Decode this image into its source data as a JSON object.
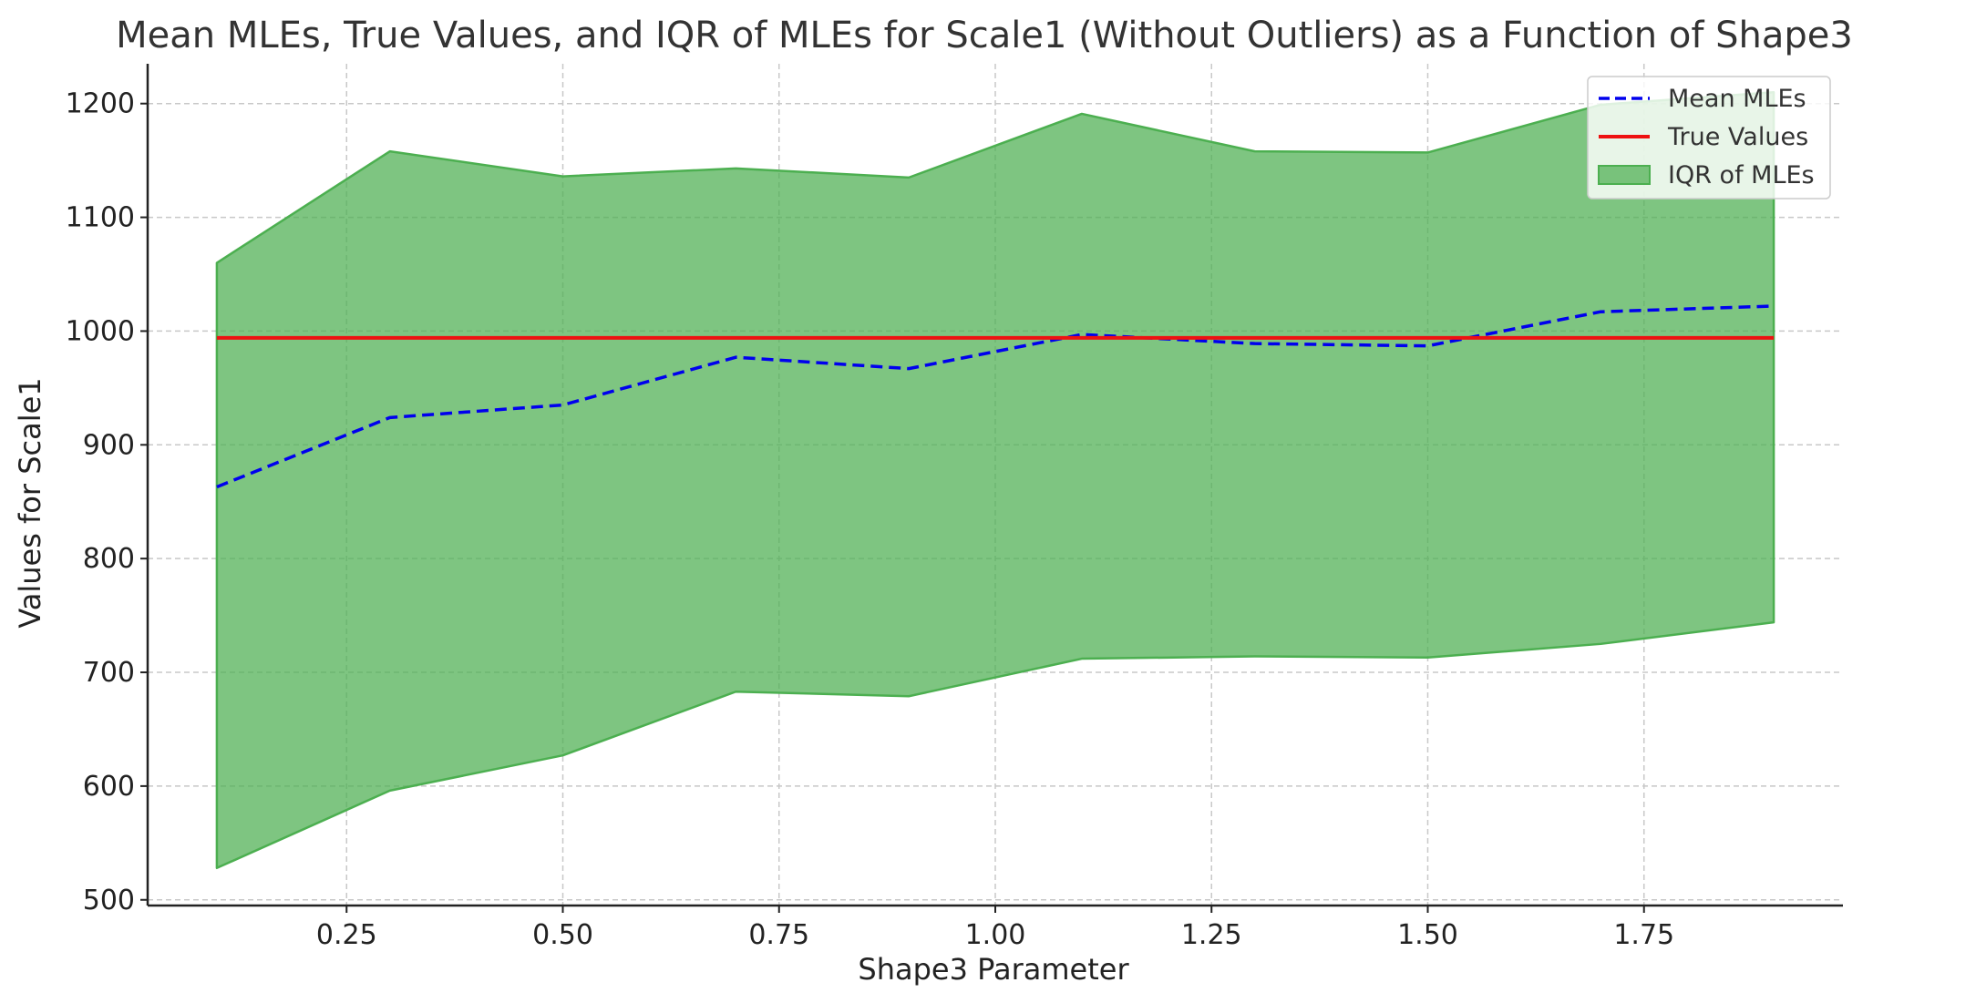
{
  "chart_data": {
    "type": "line",
    "title": "Mean MLEs, True Values, and IQR of MLEs for Scale1 (Without Outliers) as a Function of Shape3",
    "xlabel": "Shape3 Parameter",
    "ylabel": "Values for Scale1",
    "xlim": [
      0.02,
      1.98
    ],
    "ylim": [
      495,
      1235
    ],
    "x_ticks": [
      0.25,
      0.5,
      0.75,
      1.0,
      1.25,
      1.5,
      1.75
    ],
    "x_tick_labels": [
      "0.25",
      "0.50",
      "0.75",
      "1.00",
      "1.25",
      "1.50",
      "1.75"
    ],
    "y_ticks": [
      500,
      600,
      700,
      800,
      900,
      1000,
      1100,
      1200
    ],
    "y_tick_labels": [
      "500",
      "600",
      "700",
      "800",
      "900",
      "1000",
      "1100",
      "1200"
    ],
    "grid": true,
    "legend_position": "top-right",
    "x": [
      0.1,
      0.3,
      0.5,
      0.7,
      0.9,
      1.1,
      1.3,
      1.5,
      1.7,
      1.9
    ],
    "series": [
      {
        "name": "Mean MLEs",
        "kind": "line",
        "style": "dashed",
        "color": "#0000ee",
        "values": [
          863,
          924,
          935,
          977,
          967,
          997,
          989,
          987,
          1017,
          1022
        ]
      },
      {
        "name": "True Values",
        "kind": "line",
        "style": "solid",
        "color": "#ee1111",
        "values": [
          994,
          994,
          994,
          994,
          994,
          994,
          994,
          994,
          994,
          994
        ]
      },
      {
        "name": "IQR of MLEs",
        "kind": "band",
        "color": "#4caf50",
        "lower": [
          528,
          596,
          627,
          683,
          679,
          712,
          714,
          713,
          725,
          744
        ],
        "upper": [
          1060,
          1158,
          1136,
          1143,
          1135,
          1191,
          1158,
          1157,
          1199,
          1210
        ]
      }
    ]
  }
}
